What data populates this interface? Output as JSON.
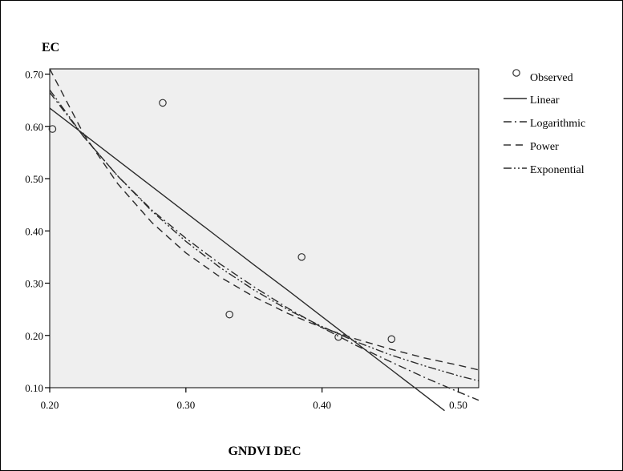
{
  "chart_data": {
    "type": "scatter",
    "ylabel": "EC",
    "xlabel": "GNDVI DEC",
    "xlim": [
      0.2,
      0.515
    ],
    "ylim": [
      0.1,
      0.71
    ],
    "x_ticks": [
      0.2,
      0.3,
      0.4,
      0.5
    ],
    "x_tick_labels": [
      "0.20",
      "0.30",
      "0.40",
      "0.50"
    ],
    "y_ticks": [
      0.1,
      0.2,
      0.3,
      0.4,
      0.5,
      0.6,
      0.7
    ],
    "y_tick_labels": [
      "0.10",
      "0.20",
      "0.30",
      "0.40",
      "0.50",
      "0.60",
      "0.70"
    ],
    "grid": false,
    "legend_position": "right",
    "observed": {
      "name": "Observed",
      "x": [
        0.202,
        0.283,
        0.332,
        0.385,
        0.412,
        0.451
      ],
      "y": [
        0.595,
        0.645,
        0.24,
        0.35,
        0.197,
        0.193
      ]
    },
    "fits": [
      {
        "name": "Linear",
        "dash": "",
        "x": [
          0.2,
          0.225,
          0.25,
          0.275,
          0.3,
          0.325,
          0.35,
          0.375,
          0.4,
          0.425,
          0.45,
          0.475,
          0.49
        ],
        "y": [
          0.635,
          0.585,
          0.535,
          0.485,
          0.435,
          0.385,
          0.335,
          0.286,
          0.236,
          0.186,
          0.136,
          0.086,
          0.056
        ]
      },
      {
        "name": "Logarithmic",
        "dash": "10 4 2 4",
        "x": [
          0.2,
          0.225,
          0.25,
          0.275,
          0.3,
          0.325,
          0.35,
          0.375,
          0.4,
          0.425,
          0.45,
          0.475,
          0.5,
          0.515
        ],
        "y": [
          0.665,
          0.58,
          0.505,
          0.44,
          0.386,
          0.337,
          0.293,
          0.252,
          0.215,
          0.181,
          0.15,
          0.12,
          0.092,
          0.076
        ]
      },
      {
        "name": "Power",
        "dash": "9 6",
        "x": [
          0.2,
          0.225,
          0.25,
          0.275,
          0.3,
          0.325,
          0.35,
          0.375,
          0.4,
          0.425,
          0.45,
          0.475,
          0.5,
          0.515
        ],
        "y": [
          0.71,
          0.585,
          0.49,
          0.416,
          0.358,
          0.312,
          0.274,
          0.242,
          0.215,
          0.193,
          0.174,
          0.157,
          0.143,
          0.134
        ]
      },
      {
        "name": "Exponential",
        "dash": "10 3 2 3 2 3",
        "x": [
          0.2,
          0.225,
          0.25,
          0.275,
          0.3,
          0.325,
          0.35,
          0.375,
          0.4,
          0.425,
          0.45,
          0.475,
          0.5,
          0.515
        ],
        "y": [
          0.67,
          0.58,
          0.505,
          0.438,
          0.38,
          0.33,
          0.287,
          0.249,
          0.217,
          0.188,
          0.163,
          0.142,
          0.123,
          0.113
        ]
      }
    ]
  }
}
